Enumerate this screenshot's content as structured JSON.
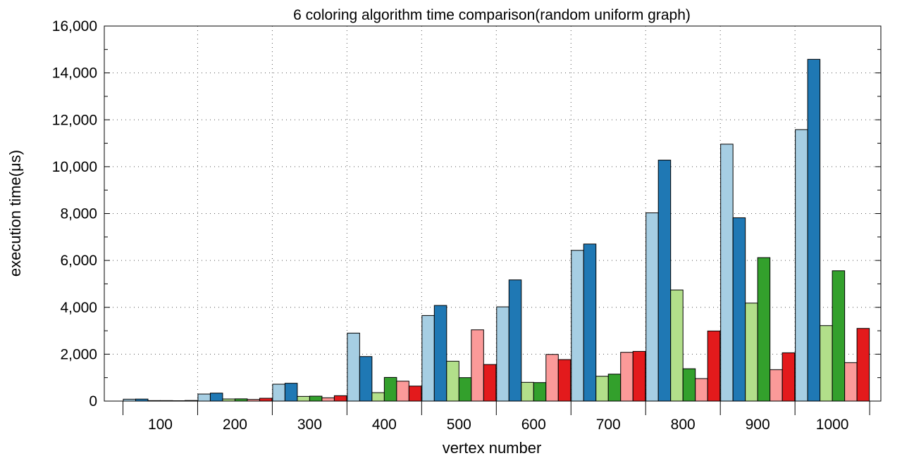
{
  "chart_data": {
    "type": "bar",
    "title": "6 coloring algorithm time comparison(random uniform graph)",
    "xlabel": "vertex number",
    "ylabel": "execution time(μs)",
    "categories": [
      "100",
      "200",
      "300",
      "400",
      "500",
      "600",
      "700",
      "800",
      "900",
      "1000"
    ],
    "ylim": [
      0,
      16000
    ],
    "yticks": [
      0,
      2000,
      4000,
      6000,
      8000,
      10000,
      12000,
      14000,
      16000
    ],
    "ytick_labels": [
      "0",
      "2,000",
      "4,000",
      "6,000",
      "8,000",
      "10,000",
      "12,000",
      "14,000",
      "16,000"
    ],
    "grid": true,
    "legend": "none",
    "series": [
      {
        "color": "#a6cee3",
        "values": [
          80,
          300,
          720,
          2900,
          3650,
          4020,
          6430,
          8030,
          10960,
          11580
        ]
      },
      {
        "color": "#1f78b4",
        "values": [
          85,
          340,
          760,
          1900,
          4080,
          5170,
          6700,
          10280,
          7820,
          14580
        ]
      },
      {
        "color": "#b2df8a",
        "values": [
          20,
          90,
          200,
          360,
          1700,
          800,
          1060,
          4740,
          4180,
          3220
        ]
      },
      {
        "color": "#33a02c",
        "values": [
          20,
          95,
          210,
          1010,
          1000,
          790,
          1150,
          1380,
          6120,
          5560
        ]
      },
      {
        "color": "#fb9a99",
        "values": [
          15,
          70,
          140,
          850,
          3040,
          1990,
          2080,
          960,
          1340,
          1640
        ]
      },
      {
        "color": "#e31a1c",
        "values": [
          25,
          120,
          230,
          640,
          1560,
          1770,
          2120,
          2990,
          2060,
          3100
        ]
      }
    ]
  }
}
